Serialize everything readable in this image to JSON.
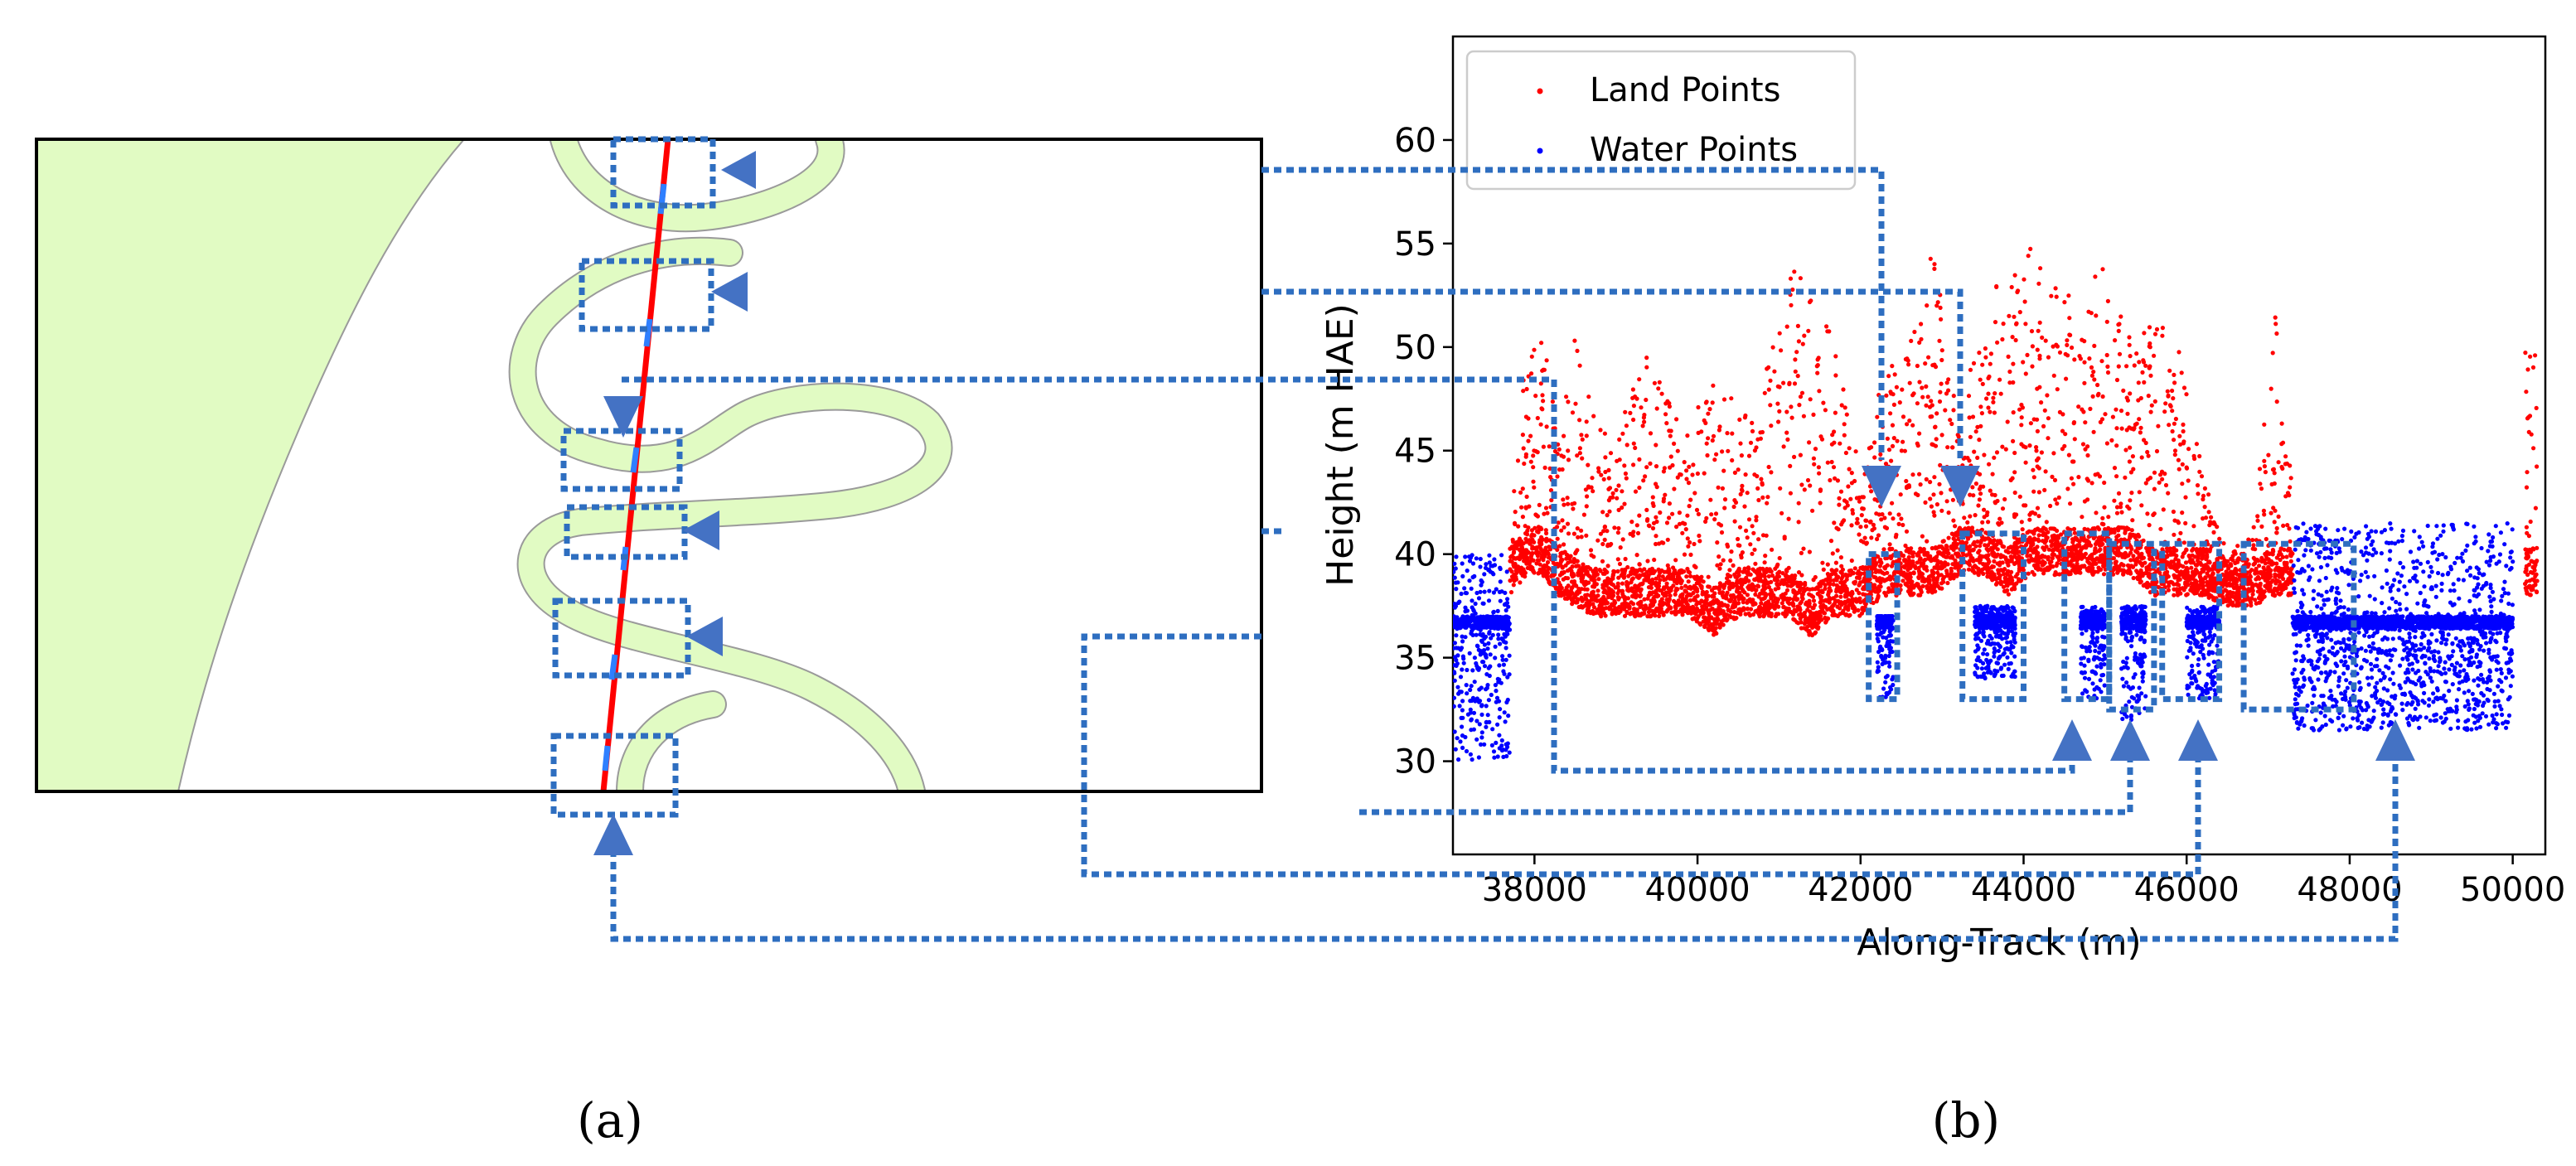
{
  "panel_a": {
    "caption": "(a)"
  },
  "panel_b": {
    "caption": "(b)"
  },
  "chart_data": {
    "type": "scatter",
    "xlabel": "Along-Track (m)",
    "ylabel": "Height (m HAE)",
    "xlim": [
      37000,
      50400
    ],
    "ylim": [
      25.5,
      65
    ],
    "x_ticks": [
      38000,
      40000,
      42000,
      44000,
      46000,
      48000,
      50000
    ],
    "y_ticks": [
      30,
      35,
      40,
      45,
      50,
      55,
      60
    ],
    "grid": false,
    "legend_position": "top-left",
    "series": [
      {
        "name": "Land Points",
        "color": "#ff0000",
        "marker": "dot",
        "envelope": [
          [
            37700,
            38,
            41
          ],
          [
            37900,
            39,
            50
          ],
          [
            38100,
            39,
            51
          ],
          [
            38300,
            38,
            46
          ],
          [
            38500,
            37.5,
            51
          ],
          [
            38700,
            37,
            47
          ],
          [
            39000,
            37,
            45
          ],
          [
            39300,
            37,
            50
          ],
          [
            39600,
            37,
            48
          ],
          [
            39900,
            37,
            46
          ],
          [
            40200,
            36,
            49
          ],
          [
            40500,
            37,
            47
          ],
          [
            40800,
            37,
            48
          ],
          [
            41100,
            37,
            54.5
          ],
          [
            41400,
            36,
            53
          ],
          [
            41700,
            37,
            50
          ],
          [
            42000,
            37,
            44
          ],
          [
            42300,
            38,
            49
          ],
          [
            42600,
            38,
            50
          ],
          [
            42900,
            38,
            55
          ],
          [
            43200,
            39,
            46
          ],
          [
            43500,
            39,
            52
          ],
          [
            43800,
            38,
            54
          ],
          [
            44100,
            39,
            55
          ],
          [
            44400,
            39,
            54
          ],
          [
            44700,
            39,
            52
          ],
          [
            45000,
            39,
            54.5
          ],
          [
            45300,
            39,
            51
          ],
          [
            45600,
            38,
            52
          ],
          [
            45900,
            38,
            50
          ],
          [
            46200,
            38,
            44
          ],
          [
            46500,
            37.5,
            40
          ],
          [
            46800,
            37.5,
            41
          ],
          [
            47100,
            38,
            52
          ],
          [
            47300,
            38,
            44
          ],
          [
            50150,
            38,
            50
          ],
          [
            50300,
            38,
            52
          ]
        ]
      },
      {
        "name": "Water Points",
        "color": "#0000ff",
        "marker": "dot",
        "segments": [
          [
            37000,
            37700,
            30,
            40,
            37
          ],
          [
            42200,
            42400,
            33,
            37,
            37
          ],
          [
            43400,
            43900,
            34,
            37.5,
            37
          ],
          [
            44700,
            45000,
            33,
            37.5,
            37
          ],
          [
            45200,
            45500,
            32,
            37.5,
            37
          ],
          [
            46000,
            46400,
            33,
            37.5,
            37
          ],
          [
            47300,
            50000,
            31.5,
            41.5,
            37
          ]
        ]
      }
    ],
    "annotation_boxes_data_units": [
      [
        42100,
        42450,
        33,
        40
      ],
      [
        43250,
        44000,
        33,
        41
      ],
      [
        44500,
        45050,
        33,
        41
      ],
      [
        45050,
        45600,
        32.5,
        40.5
      ],
      [
        45700,
        46400,
        33,
        40.5
      ],
      [
        46700,
        48050,
        32.5,
        40.5
      ]
    ]
  }
}
